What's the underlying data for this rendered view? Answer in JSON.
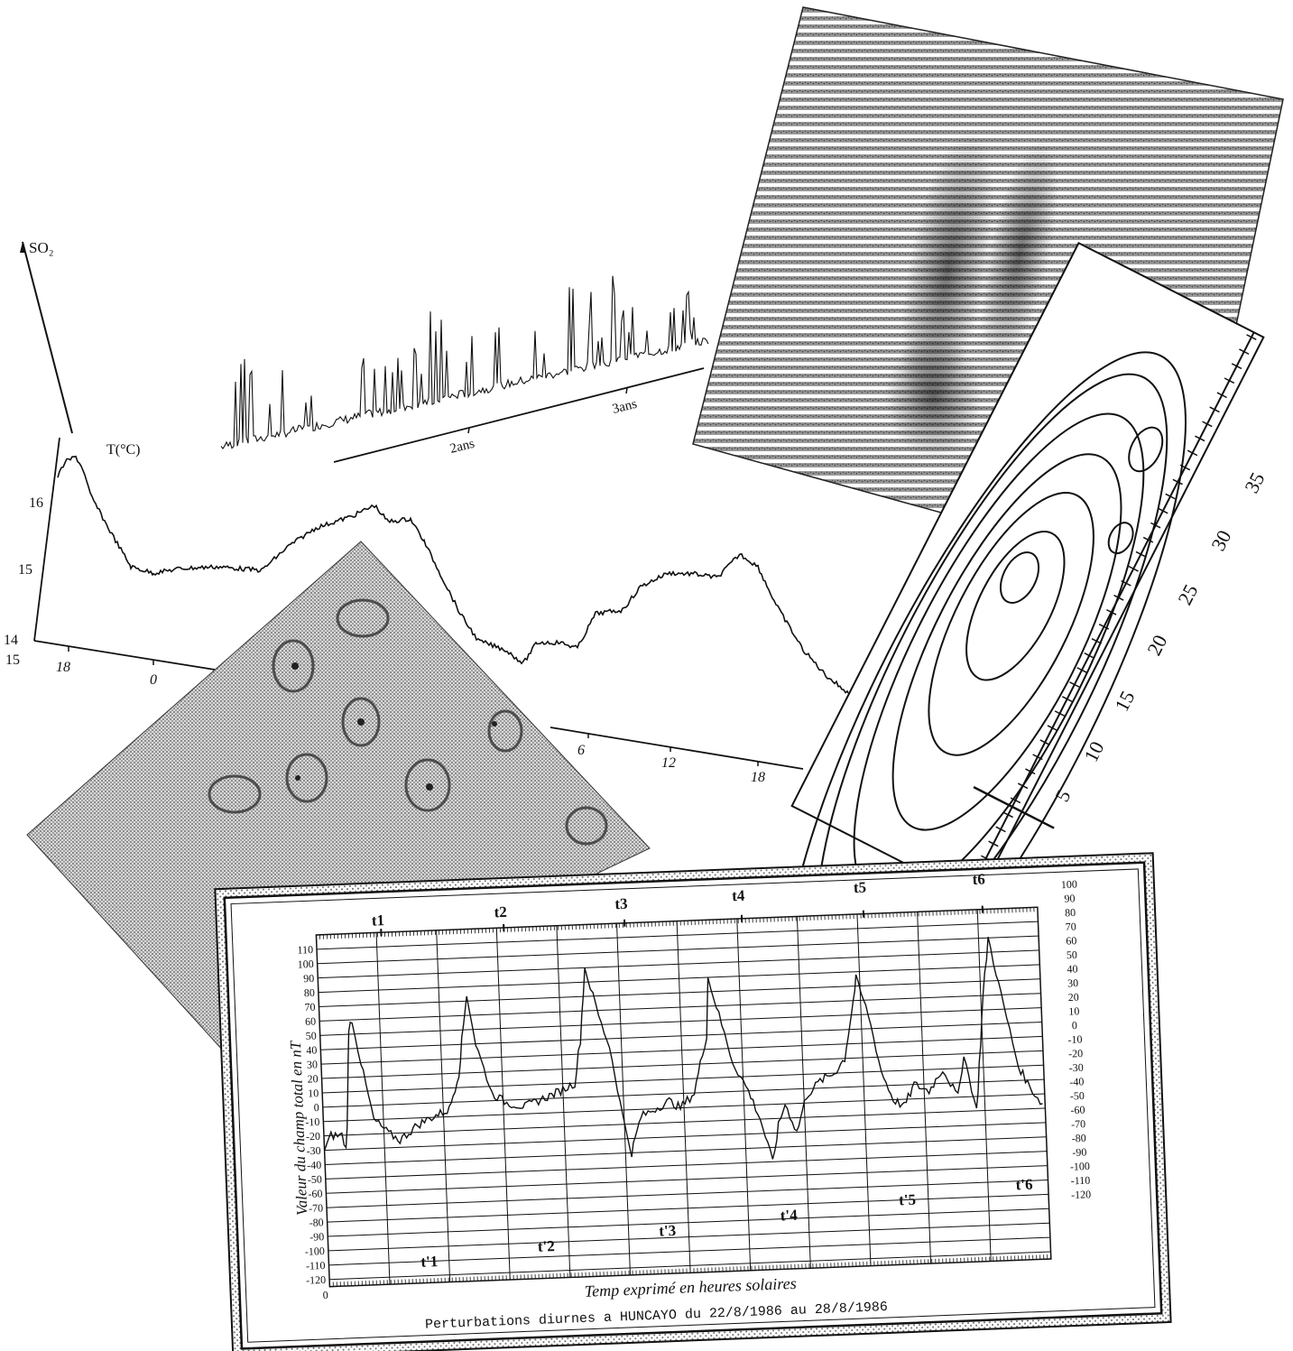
{
  "panels": {
    "so2": {
      "y_label": "SO₂",
      "x_ticks": [
        "2ans",
        "3ans"
      ]
    },
    "temperature": {
      "y_label": "T(°C)",
      "y_ticks": [
        "16",
        "15",
        "14"
      ],
      "x_ticks_left": [
        "15",
        "18",
        "0"
      ],
      "x_ticks_right": [
        "6",
        "12",
        "18"
      ]
    },
    "contour": {
      "scale_labels": [
        "35",
        "30",
        "25",
        "20",
        "15",
        "10",
        "5"
      ]
    },
    "magnetic": {
      "y_axis_title": "Valeur du champ total en nT",
      "x_axis_title": "Temp exprimé en heures solaires",
      "caption": "Perturbations diurnes a HUNCAYO du 22/8/1986 au 28/8/1986",
      "x_origin": "0",
      "left_ticks": [
        "110",
        "100",
        "90",
        "80",
        "70",
        "60",
        "50",
        "40",
        "30",
        "20",
        "10",
        "0",
        "-10",
        "-20",
        "-30",
        "-40",
        "-50",
        "-60",
        "-70",
        "-80",
        "-90",
        "-100",
        "-110",
        "-120"
      ],
      "right_ticks": [
        "100",
        "90",
        "80",
        "70",
        "60",
        "50",
        "40",
        "30",
        "20",
        "10",
        "0",
        "-10",
        "-20",
        "-30",
        "-40",
        "-50",
        "-60",
        "-70",
        "-80",
        "-90",
        "-100",
        "-110",
        "-120"
      ],
      "top_markers": [
        "t1",
        "t2",
        "t3",
        "t4",
        "t5",
        "t6"
      ],
      "bottom_markers": [
        "t'1",
        "t'2",
        "t'3",
        "t'4",
        "t'5",
        "t'6"
      ]
    }
  }
}
